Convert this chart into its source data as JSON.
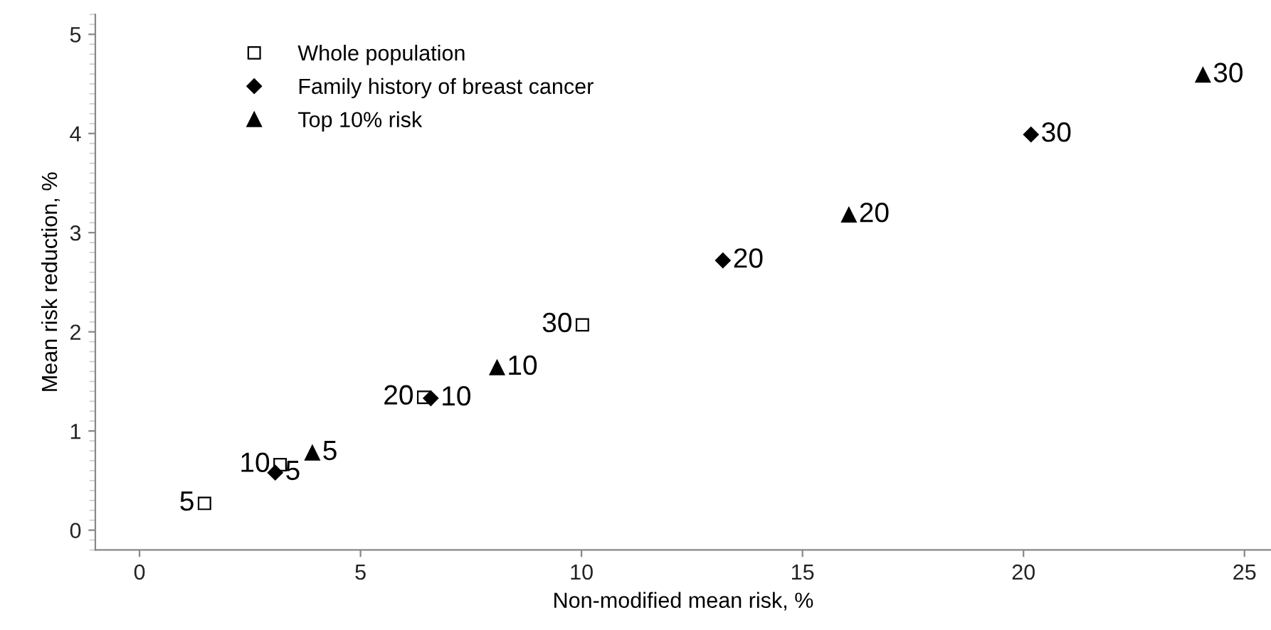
{
  "chart_data": {
    "type": "scatter",
    "xlabel": "Non-modified mean risk, %",
    "ylabel": "Mean risk reduction, %",
    "xlim": [
      -1,
      25.6
    ],
    "ylim": [
      -0.2,
      5.2
    ],
    "xticks": [
      0,
      5,
      10,
      15,
      20,
      25
    ],
    "yticks": [
      0,
      1,
      2,
      3,
      4,
      5
    ],
    "grid": false,
    "legend": "top left",
    "series": [
      {
        "name": "Whole population",
        "color": "#000000",
        "marker": "square",
        "x": [
          1.47,
          3.18,
          6.43,
          10.02
        ],
        "values": [
          0.27,
          0.66,
          1.34,
          2.07
        ]
      },
      {
        "name": "Family history of breast cancer",
        "color": "#000000",
        "marker": "diamond",
        "x": [
          3.07,
          6.59,
          13.2,
          20.17
        ],
        "values": [
          0.58,
          1.33,
          2.72,
          3.99
        ]
      },
      {
        "name": "Top 10% risk",
        "color": "#000000",
        "marker": "triangle",
        "x": [
          3.91,
          8.09,
          16.05,
          24.06
        ],
        "values": [
          0.78,
          1.64,
          3.18,
          4.59
        ]
      }
    ],
    "annotations": [
      {
        "text": "5",
        "x": 1.47,
        "y": 0.27
      },
      {
        "text": "10",
        "x": 3.18,
        "y": 0.66
      },
      {
        "text": "20",
        "x": 6.43,
        "y": 1.34
      },
      {
        "text": "30",
        "x": 10.02,
        "y": 2.07
      },
      {
        "text": "5",
        "x": 3.07,
        "y": 0.58
      },
      {
        "text": "10",
        "x": 6.59,
        "y": 1.33
      },
      {
        "text": "20",
        "x": 13.2,
        "y": 2.72
      },
      {
        "text": "30",
        "x": 20.17,
        "y": 3.99
      },
      {
        "text": "5",
        "x": 3.91,
        "y": 0.78
      },
      {
        "text": "10",
        "x": 8.09,
        "y": 1.64
      },
      {
        "text": "20",
        "x": 16.05,
        "y": 3.18
      },
      {
        "text": "30",
        "x": 24.06,
        "y": 4.59
      }
    ]
  }
}
